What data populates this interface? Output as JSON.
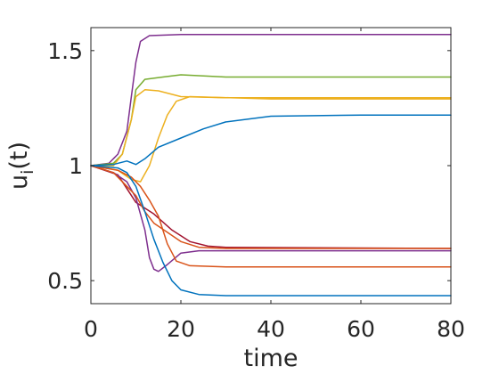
{
  "chart_data": {
    "type": "line",
    "title": "",
    "xlabel": "time",
    "ylabel": "u",
    "ylabel_subscript": "i",
    "ylabel_suffix": "(t)",
    "xlim": [
      0,
      80
    ],
    "ylim": [
      0.4,
      1.6
    ],
    "xticks": [
      0,
      20,
      40,
      60,
      80
    ],
    "xtick_labels": [
      "0",
      "20",
      "40",
      "60",
      "80"
    ],
    "yticks": [
      0.5,
      1,
      1.5
    ],
    "ytick_labels": [
      "0.5",
      "1",
      "1.5"
    ],
    "grid": false,
    "legend": "none",
    "series": [
      {
        "color": "#7E2F8E",
        "points": [
          [
            0,
            1.0
          ],
          [
            4,
            1.01
          ],
          [
            6,
            1.05
          ],
          [
            8,
            1.15
          ],
          [
            9,
            1.3
          ],
          [
            10,
            1.45
          ],
          [
            11,
            1.54
          ],
          [
            13,
            1.565
          ],
          [
            20,
            1.57
          ],
          [
            40,
            1.57
          ],
          [
            80,
            1.57
          ]
        ]
      },
      {
        "color": "#77AC30",
        "points": [
          [
            0,
            1.0
          ],
          [
            5,
            1.01
          ],
          [
            7,
            1.05
          ],
          [
            9,
            1.2
          ],
          [
            10,
            1.33
          ],
          [
            12,
            1.375
          ],
          [
            16,
            1.385
          ],
          [
            20,
            1.395
          ],
          [
            30,
            1.385
          ],
          [
            80,
            1.385
          ]
        ]
      },
      {
        "color": "#EDB120",
        "points": [
          [
            0,
            1.0
          ],
          [
            5,
            1.0
          ],
          [
            7,
            1.05
          ],
          [
            9,
            1.2
          ],
          [
            10,
            1.3
          ],
          [
            12,
            1.33
          ],
          [
            15,
            1.325
          ],
          [
            20,
            1.3
          ],
          [
            30,
            1.295
          ],
          [
            80,
            1.295
          ]
        ]
      },
      {
        "color": "#EDB120",
        "points": [
          [
            0,
            1.0
          ],
          [
            6,
            0.98
          ],
          [
            9,
            0.94
          ],
          [
            11,
            0.93
          ],
          [
            13,
            1.0
          ],
          [
            15,
            1.12
          ],
          [
            17,
            1.22
          ],
          [
            19,
            1.28
          ],
          [
            22,
            1.3
          ],
          [
            40,
            1.29
          ],
          [
            80,
            1.29
          ]
        ]
      },
      {
        "color": "#0072BD",
        "points": [
          [
            0,
            1.0
          ],
          [
            5,
            1.005
          ],
          [
            8,
            1.02
          ],
          [
            10,
            1.005
          ],
          [
            12,
            1.03
          ],
          [
            15,
            1.08
          ],
          [
            20,
            1.12
          ],
          [
            25,
            1.16
          ],
          [
            30,
            1.19
          ],
          [
            40,
            1.215
          ],
          [
            60,
            1.22
          ],
          [
            80,
            1.22
          ]
        ]
      },
      {
        "color": "#A2142F",
        "points": [
          [
            0,
            1.0
          ],
          [
            6,
            0.96
          ],
          [
            8,
            0.9
          ],
          [
            10,
            0.84
          ],
          [
            14,
            0.79
          ],
          [
            18,
            0.72
          ],
          [
            22,
            0.67
          ],
          [
            26,
            0.65
          ],
          [
            30,
            0.645
          ],
          [
            80,
            0.64
          ]
        ]
      },
      {
        "color": "#7E2F8E",
        "points": [
          [
            0,
            1.0
          ],
          [
            5,
            0.97
          ],
          [
            8,
            0.93
          ],
          [
            10,
            0.86
          ],
          [
            12,
            0.72
          ],
          [
            13,
            0.6
          ],
          [
            14,
            0.55
          ],
          [
            15,
            0.54
          ],
          [
            17,
            0.57
          ],
          [
            20,
            0.62
          ],
          [
            24,
            0.63
          ],
          [
            80,
            0.63
          ]
        ]
      },
      {
        "color": "#D95319",
        "points": [
          [
            0,
            1.0
          ],
          [
            5,
            0.97
          ],
          [
            8,
            0.91
          ],
          [
            10,
            0.87
          ],
          [
            12,
            0.8
          ],
          [
            14,
            0.75
          ],
          [
            17,
            0.71
          ],
          [
            20,
            0.67
          ],
          [
            24,
            0.645
          ],
          [
            30,
            0.64
          ],
          [
            80,
            0.64
          ]
        ]
      },
      {
        "color": "#D95319",
        "points": [
          [
            0,
            1.0
          ],
          [
            6,
            0.98
          ],
          [
            9,
            0.95
          ],
          [
            11,
            0.91
          ],
          [
            13,
            0.85
          ],
          [
            15,
            0.78
          ],
          [
            17,
            0.66
          ],
          [
            19,
            0.585
          ],
          [
            22,
            0.565
          ],
          [
            30,
            0.56
          ],
          [
            80,
            0.56
          ]
        ]
      },
      {
        "color": "#0072BD",
        "points": [
          [
            0,
            1.0
          ],
          [
            6,
            0.99
          ],
          [
            8,
            0.97
          ],
          [
            10,
            0.91
          ],
          [
            12,
            0.8
          ],
          [
            14,
            0.68
          ],
          [
            16,
            0.58
          ],
          [
            18,
            0.5
          ],
          [
            20,
            0.46
          ],
          [
            24,
            0.44
          ],
          [
            30,
            0.435
          ],
          [
            80,
            0.435
          ]
        ]
      }
    ]
  }
}
